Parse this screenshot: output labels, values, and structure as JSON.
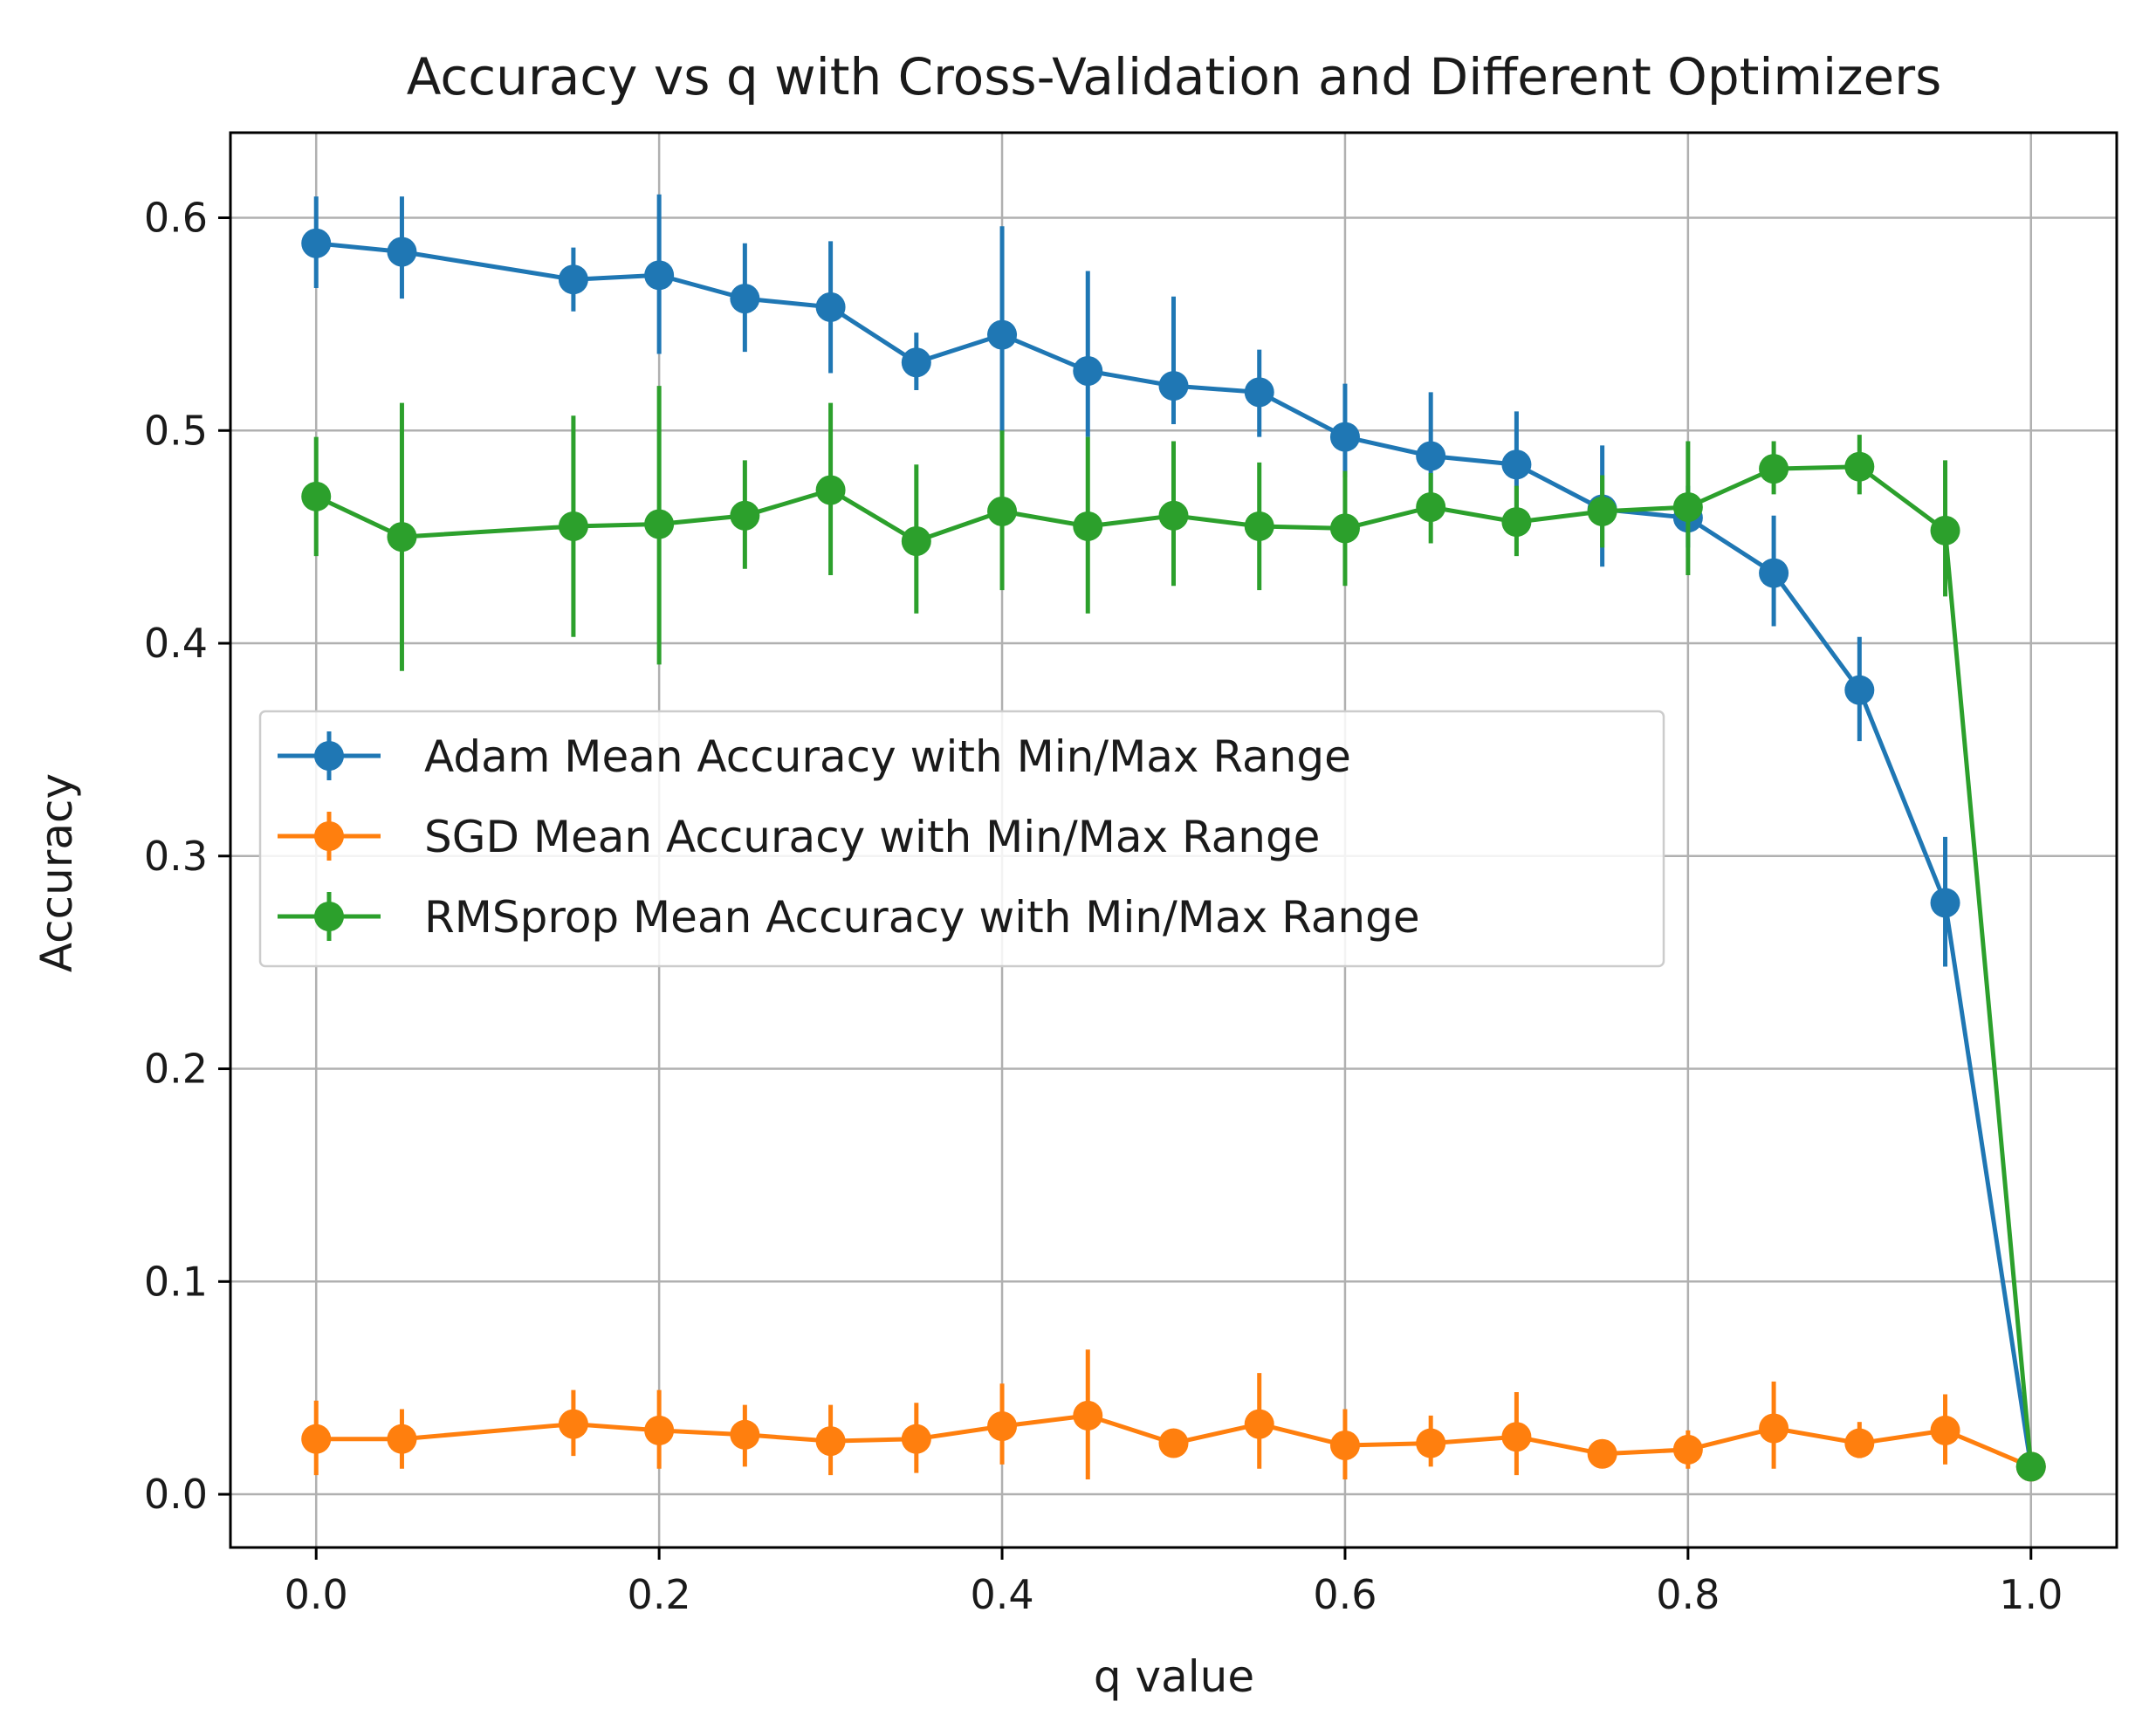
{
  "chart_data": {
    "type": "line",
    "title": "Accuracy vs q with Cross-Validation and Different Optimizers",
    "xlabel": "q value",
    "ylabel": "Accuracy",
    "xlim": [
      -0.05,
      1.05
    ],
    "ylim": [
      -0.025,
      0.64
    ],
    "grid": true,
    "legend_position": "center-left",
    "xticks": [
      0.0,
      0.2,
      0.4,
      0.6,
      0.8,
      1.0
    ],
    "xtick_labels": [
      "0.0",
      "0.2",
      "0.4",
      "0.6",
      "0.8",
      "1.0"
    ],
    "yticks": [
      0.0,
      0.1,
      0.2,
      0.3,
      0.4,
      0.5,
      0.6
    ],
    "ytick_labels": [
      "0.0",
      "0.1",
      "0.2",
      "0.3",
      "0.4",
      "0.5",
      "0.6"
    ],
    "x": [
      0.0,
      0.05,
      0.15,
      0.2,
      0.25,
      0.3,
      0.35,
      0.4,
      0.45,
      0.5,
      0.55,
      0.6,
      0.65,
      0.7,
      0.75,
      0.8,
      0.85,
      0.9,
      0.95,
      1.0
    ],
    "series": [
      {
        "name": "Adam Mean Accuracy with Min/Max Range",
        "color": "#1f77b4",
        "values": [
          0.588,
          0.584,
          0.571,
          0.573,
          0.562,
          0.558,
          0.532,
          0.545,
          0.528,
          0.521,
          0.518,
          0.497,
          0.488,
          0.484,
          0.463,
          0.459,
          0.433,
          0.378,
          0.278,
          0.013
        ],
        "min": [
          0.567,
          0.562,
          0.556,
          0.536,
          0.537,
          0.527,
          0.519,
          0.498,
          0.497,
          0.503,
          0.497,
          0.478,
          0.462,
          0.462,
          0.436,
          0.445,
          0.408,
          0.354,
          0.248,
          0.009
        ],
        "max": [
          0.61,
          0.61,
          0.586,
          0.611,
          0.588,
          0.589,
          0.546,
          0.596,
          0.575,
          0.563,
          0.538,
          0.522,
          0.518,
          0.509,
          0.493,
          0.474,
          0.46,
          0.403,
          0.309,
          0.016
        ]
      },
      {
        "name": "SGD Mean Accuracy with Min/Max Range",
        "color": "#ff7f0e",
        "values": [
          0.026,
          0.026,
          0.033,
          0.03,
          0.028,
          0.025,
          0.026,
          0.032,
          0.037,
          0.024,
          0.033,
          0.023,
          0.024,
          0.027,
          0.019,
          0.021,
          0.031,
          0.024,
          0.03,
          0.013
        ],
        "min": [
          0.009,
          0.012,
          0.018,
          0.012,
          0.013,
          0.009,
          0.01,
          0.014,
          0.007,
          0.02,
          0.012,
          0.007,
          0.013,
          0.009,
          0.013,
          0.012,
          0.012,
          0.017,
          0.014,
          0.009
        ],
        "max": [
          0.044,
          0.04,
          0.049,
          0.049,
          0.042,
          0.042,
          0.043,
          0.052,
          0.068,
          0.028,
          0.057,
          0.04,
          0.037,
          0.048,
          0.025,
          0.03,
          0.053,
          0.034,
          0.047,
          0.016
        ]
      },
      {
        "name": "RMSprop Mean Accuracy with Min/Max Range",
        "color": "#2ca02c",
        "values": [
          0.469,
          0.45,
          0.455,
          0.456,
          0.46,
          0.472,
          0.448,
          0.462,
          0.455,
          0.46,
          0.455,
          0.454,
          0.464,
          0.457,
          0.462,
          0.464,
          0.482,
          0.483,
          0.453,
          0.013
        ],
        "min": [
          0.441,
          0.387,
          0.403,
          0.39,
          0.435,
          0.432,
          0.414,
          0.425,
          0.414,
          0.427,
          0.425,
          0.427,
          0.447,
          0.441,
          0.445,
          0.432,
          0.47,
          0.47,
          0.422,
          0.009
        ],
        "max": [
          0.497,
          0.513,
          0.507,
          0.521,
          0.486,
          0.513,
          0.484,
          0.5,
          0.497,
          0.495,
          0.485,
          0.481,
          0.48,
          0.474,
          0.479,
          0.495,
          0.495,
          0.498,
          0.486,
          0.016
        ]
      }
    ]
  }
}
